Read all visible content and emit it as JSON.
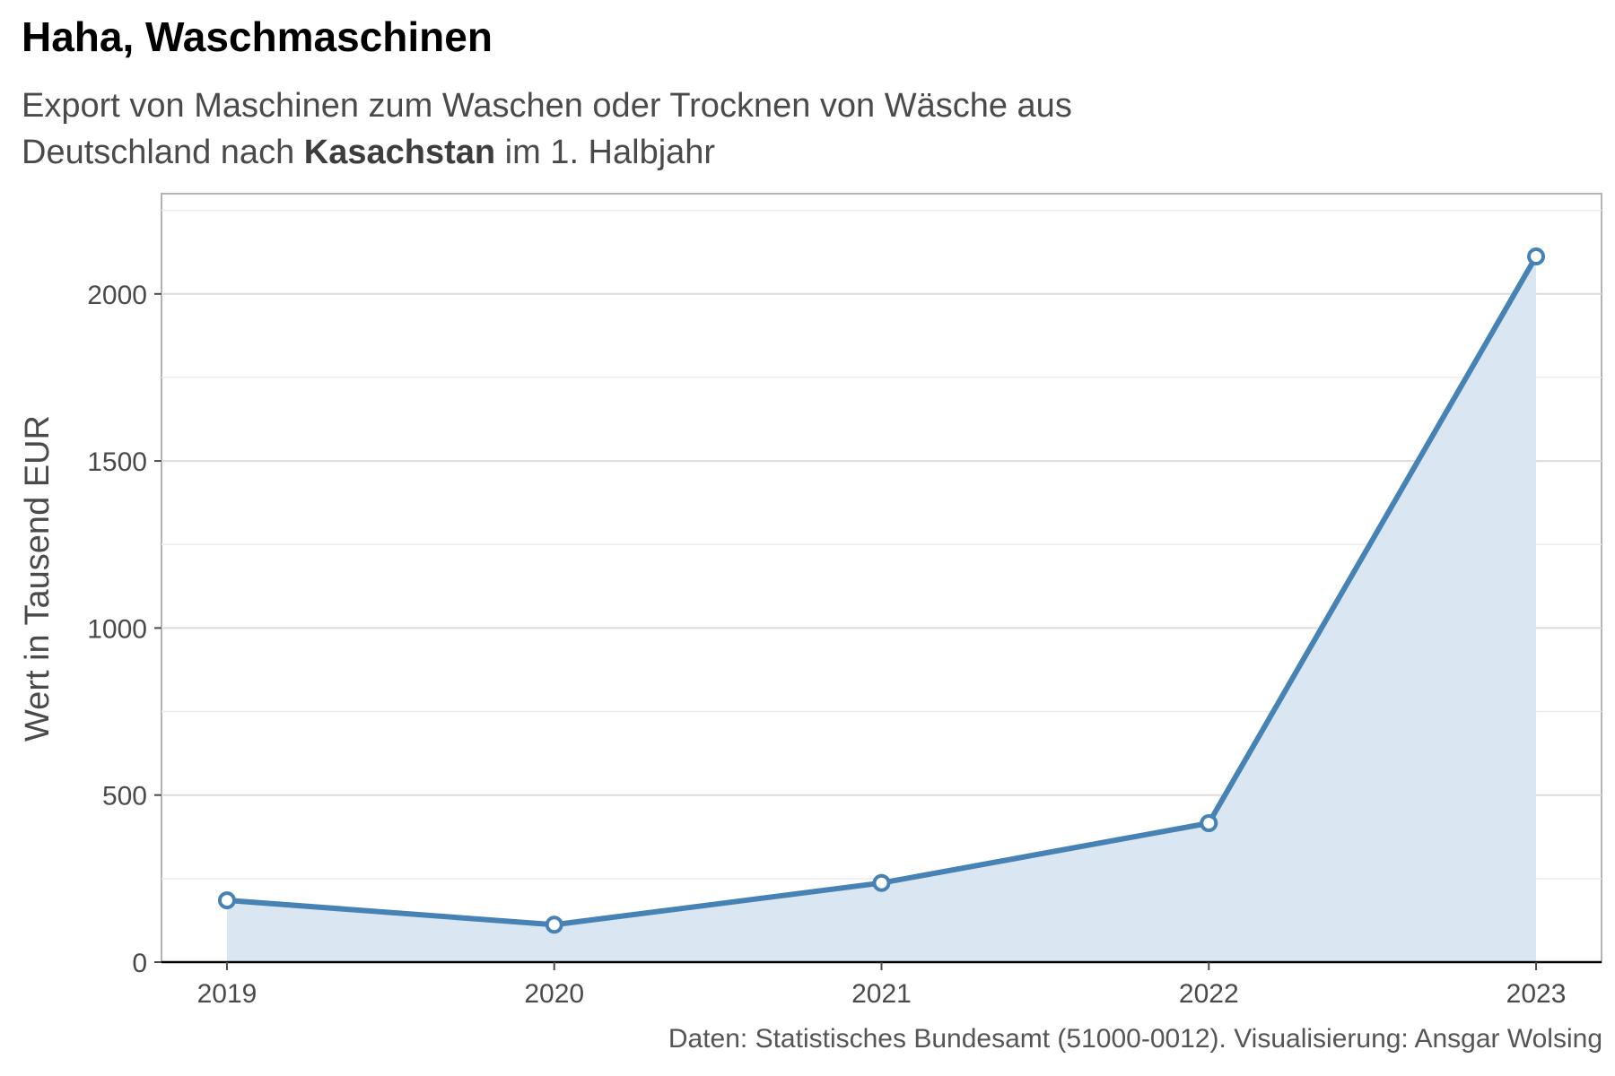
{
  "title": "Haha, Waschmaschinen",
  "subtitle": {
    "line1": "Export von Maschinen zum Waschen oder Trocknen von Wäsche aus",
    "line2_pre": "Deutschland nach ",
    "line2_bold": "Kasachstan",
    "line2_post": " im 1. Halbjahr"
  },
  "caption": "Daten: Statistisches Bundesamt (51000-0012). Visualisierung: Ansgar Wolsing",
  "colors": {
    "line": "#4682b4",
    "fill": "#dae6f1",
    "grid": "#dcdcdc",
    "axis": "#000000"
  },
  "chart_data": {
    "type": "area",
    "title": "Haha, Waschmaschinen",
    "ylabel": "Wert in Tausend EUR",
    "xlabel": "",
    "x": [
      2019,
      2020,
      2021,
      2022,
      2023
    ],
    "x_tick_labels": [
      "2019",
      "2020",
      "2021",
      "2022",
      "2023"
    ],
    "y_ticks": [
      0,
      500,
      1000,
      1500,
      2000
    ],
    "y_tick_labels": [
      "0",
      "500",
      "1000",
      "1500",
      "2000"
    ],
    "ylim": [
      0,
      2300
    ],
    "xlim": [
      2018.8,
      2023.2
    ],
    "grid": true,
    "series": [
      {
        "values": [
          185,
          112,
          237,
          416,
          2112
        ]
      }
    ]
  }
}
